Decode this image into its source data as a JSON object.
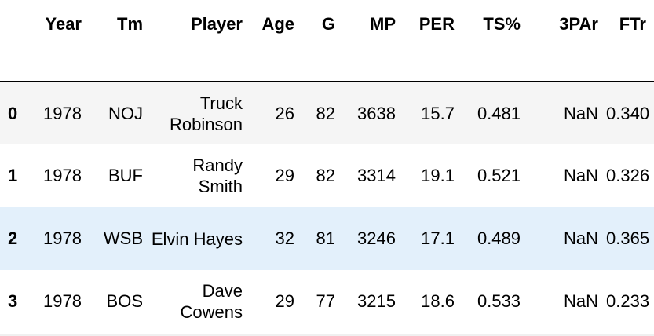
{
  "table": {
    "columns": [
      "Year",
      "Tm",
      "Player",
      "Age",
      "G",
      "MP",
      "PER",
      "TS%",
      "3PAr",
      "FTr"
    ],
    "rows": [
      {
        "index": "0",
        "cells": [
          "1978",
          "NOJ",
          "Truck Robinson",
          "26",
          "82",
          "3638",
          "15.7",
          "0.481",
          "NaN",
          "0.340"
        ]
      },
      {
        "index": "1",
        "cells": [
          "1978",
          "BUF",
          "Randy Smith",
          "29",
          "82",
          "3314",
          "19.1",
          "0.521",
          "NaN",
          "0.326"
        ]
      },
      {
        "index": "2",
        "cells": [
          "1978",
          "WSB",
          "Elvin Hayes",
          "32",
          "81",
          "3246",
          "17.1",
          "0.489",
          "NaN",
          "0.365"
        ]
      },
      {
        "index": "3",
        "cells": [
          "1978",
          "BOS",
          "Dave Cowens",
          "29",
          "77",
          "3215",
          "18.6",
          "0.533",
          "NaN",
          "0.233"
        ]
      }
    ]
  },
  "colors": {
    "row_even": "#f5f5f5",
    "row_hover": "#e3f0fb",
    "header_rule": "#000000"
  }
}
